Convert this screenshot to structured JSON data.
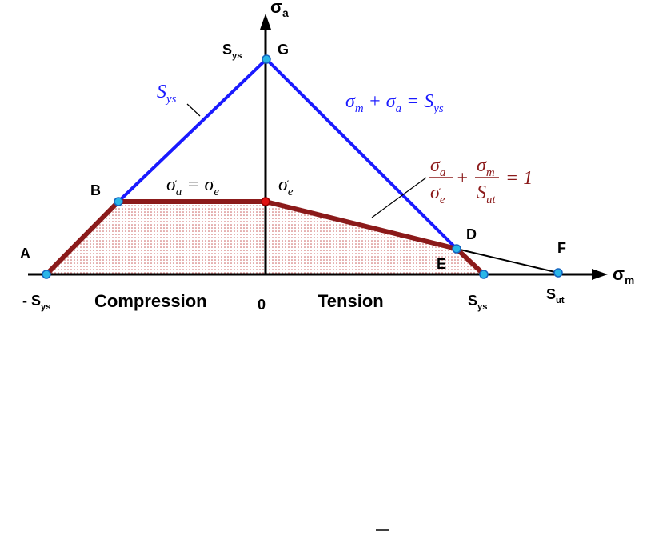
{
  "axis_labels": {
    "vertical": {
      "text": "σ",
      "sub": "a"
    },
    "horizontal": {
      "text": "σ",
      "sub": "m"
    }
  },
  "point_labels": {
    "A": "A",
    "B": "B",
    "D": "D",
    "E": "E",
    "F": "F",
    "G": "G"
  },
  "tick_labels": {
    "top_sys": {
      "text": "S",
      "sub": "ys"
    },
    "neg_sys": {
      "text": "- S",
      "sub": "ys"
    },
    "zero": "0",
    "sys": {
      "text": "S",
      "sub": "ys"
    },
    "sut": {
      "text": "S",
      "sub": "ut"
    }
  },
  "regions": {
    "compression": "Compression",
    "tension": "Tension"
  },
  "annotations": {
    "yield_line": {
      "text": "S",
      "sub": "ys"
    },
    "yield_equation": [
      {
        "text": "σ",
        "sub": "m"
      },
      {
        "text": " + "
      },
      {
        "text": "σ",
        "sub": "a"
      },
      {
        "text": " = "
      },
      {
        "text": "S",
        "sub": "ys"
      }
    ],
    "endurance_equation": [
      {
        "text": "σ",
        "sub": "a"
      },
      {
        "text": " = "
      },
      {
        "text": "σ",
        "sub": "e"
      }
    ],
    "endurance_point": {
      "text": "σ",
      "sub": "e"
    },
    "goodman_equation": {
      "terms": [
        {
          "num": {
            "text": "σ",
            "sub": "a"
          },
          "den": {
            "text": "σ",
            "sub": "e"
          }
        },
        {
          "num": {
            "text": "σ",
            "sub": "m"
          },
          "den": {
            "text": "S",
            "sub": "ut"
          }
        }
      ],
      "plus": "+",
      "equals": "= 1"
    }
  }
}
